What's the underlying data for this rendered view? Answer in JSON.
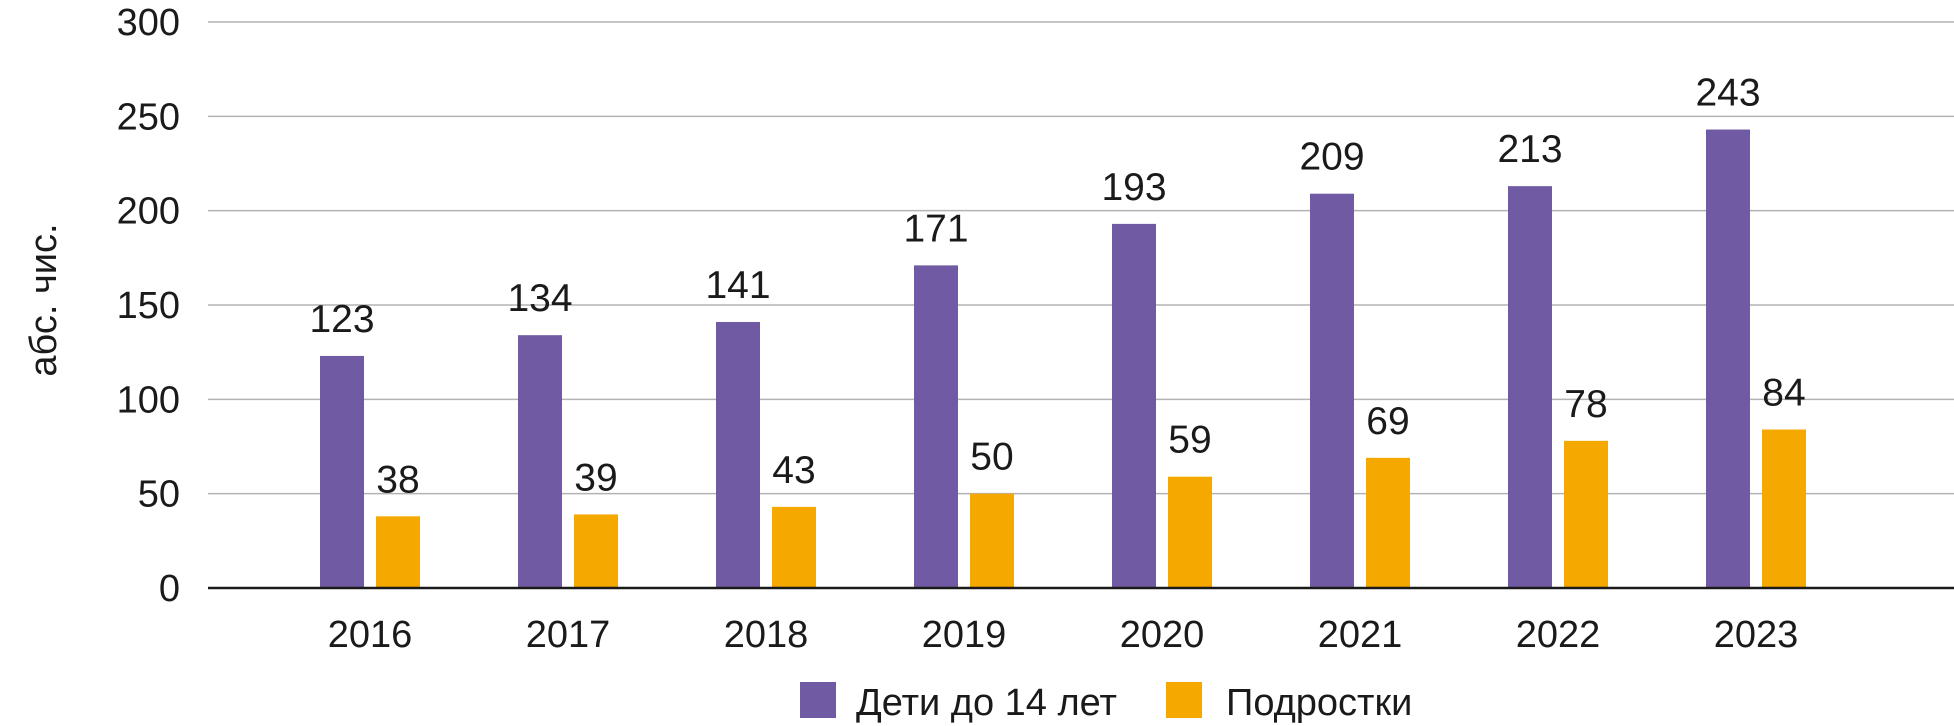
{
  "chart_data": {
    "type": "bar",
    "categories": [
      "2016",
      "2017",
      "2018",
      "2019",
      "2020",
      "2021",
      "2022",
      "2023"
    ],
    "series": [
      {
        "name": "Дети до 14 лет",
        "color": "#6f5aa3",
        "values": [
          123,
          134,
          141,
          171,
          193,
          209,
          213,
          243
        ]
      },
      {
        "name": "Подростки",
        "color": "#f5a800",
        "values": [
          38,
          39,
          43,
          50,
          59,
          69,
          78,
          84
        ]
      }
    ],
    "ylabel": "абс. чис.",
    "ylim": [
      0,
      300
    ],
    "yticks": [
      "0",
      "50",
      "100",
      "150",
      "200",
      "250",
      "300"
    ],
    "grid": true,
    "legend_position": "bottom"
  }
}
